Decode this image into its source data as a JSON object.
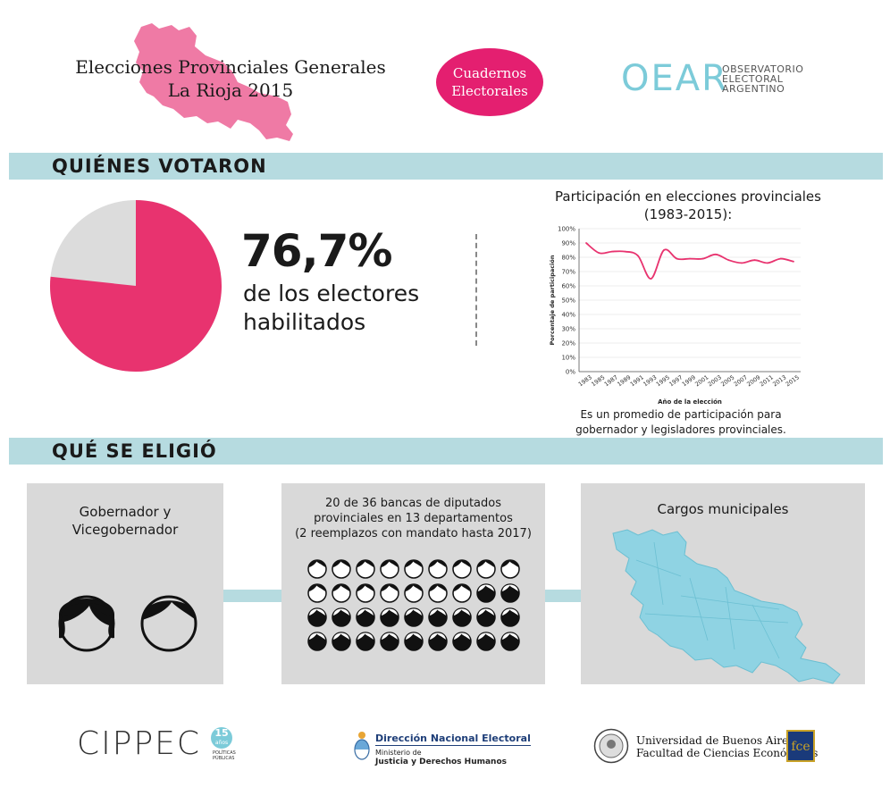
{
  "header": {
    "title_line1": "Elecciones Provinciales Generales",
    "title_line2": "La Rioja 2015",
    "badge": "Cuadernos\nElectorales",
    "oear_logo": "OEAR",
    "oear_line1": "OBSERVATORIO",
    "oear_line2": "ELECTORAL",
    "oear_line3": "ARGENTINO",
    "accent_color": "#e8336f",
    "band_color": "#b6dbe0"
  },
  "section1": {
    "title": "QUIÉNES VOTARON",
    "participation_value": 76.7,
    "participation_big": "76,7%",
    "participation_caption_line1": "de los electores",
    "participation_caption_line2": "habilitados",
    "note_line1": "Es un promedio de participación para",
    "note_line2": "gobernador y legisladores provinciales."
  },
  "chart_data": {
    "type": "line",
    "title_line1": "Participación en elecciones provinciales",
    "title_line2": "(1983-2015):",
    "xlabel": "Año de la elección",
    "ylabel": "Porcentaje de participación",
    "ylim": [
      0,
      100
    ],
    "yticks": [
      "0%",
      "10%",
      "20%",
      "30%",
      "40%",
      "50%",
      "60%",
      "70%",
      "80%",
      "90%",
      "100%"
    ],
    "x": [
      1983,
      1985,
      1987,
      1989,
      1991,
      1993,
      1995,
      1997,
      1999,
      2001,
      2003,
      2005,
      2007,
      2009,
      2011,
      2013,
      2015
    ],
    "values": [
      90,
      83,
      84,
      84,
      81,
      65,
      85,
      79,
      79,
      79,
      82,
      78,
      76,
      78,
      76,
      79,
      77
    ],
    "color": "#e8336f"
  },
  "section2": {
    "title": "QUÉ SE ELIGIÓ",
    "card1_line1": "Gobernador y",
    "card1_line2": "Vicegobernador",
    "card2_line1": "20 de 36 bancas de diputados",
    "card2_line2": "provinciales en 13 departamentos",
    "card2_line3": "(2 reemplazos con mandato hasta 2017)",
    "seats_total": 36,
    "seats_elected": 20,
    "card3_title": "Cargos municipales",
    "map_color": "#8fd3e3"
  },
  "footer": {
    "cippec": "CIPPEC",
    "cippec_badge": "15",
    "cippec_badge_sub": "años",
    "cippec_sub1": "POLÍTICAS",
    "cippec_sub2": "PÚBLICAS",
    "dne_title": "Dirección Nacional Electoral",
    "dne_sub1": "Ministerio de",
    "dne_sub2": "Justicia y Derechos Humanos",
    "uba_line1": "Universidad de Buenos Aires",
    "uba_line2": "Facultad de Ciencias Económicas",
    "fce": "fce"
  }
}
